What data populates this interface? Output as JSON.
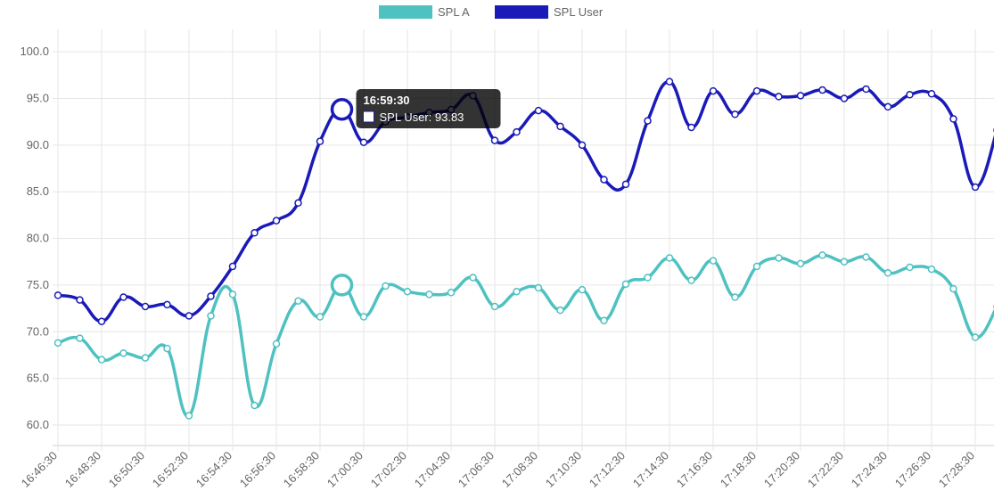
{
  "chart_data": {
    "type": "line",
    "categories": [
      "16:46:30",
      null,
      "16:48:30",
      null,
      "16:50:30",
      null,
      "16:52:30",
      null,
      "16:54:30",
      null,
      "16:56:30",
      null,
      "16:58:30",
      null,
      "17:00:30",
      null,
      "17:02:30",
      null,
      "17:04:30",
      null,
      "17:06:30",
      null,
      "17:08:30",
      null,
      "17:10:30",
      null,
      "17:12:30",
      null,
      "17:14:30",
      null,
      "17:16:30",
      null,
      "17:18:30",
      null,
      "17:20:30",
      null,
      "17:22:30",
      null,
      "17:24:30",
      null,
      "17:26:30",
      null,
      "17:28:30",
      null
    ],
    "series": [
      {
        "name": "SPL A",
        "color": "#4fc1c1",
        "values": [
          68.8,
          69.3,
          67.0,
          67.7,
          67.2,
          68.2,
          61.0,
          71.7,
          74.0,
          62.1,
          68.7,
          73.3,
          71.6,
          75.0,
          71.6,
          74.9,
          74.3,
          74.0,
          74.2,
          75.8,
          72.7,
          74.3,
          74.7,
          72.3,
          74.5,
          71.2,
          75.1,
          75.8,
          77.9,
          75.5,
          77.6,
          73.7,
          77.0,
          77.9,
          77.3,
          78.2,
          77.5,
          78.0,
          76.3,
          76.9,
          76.7,
          74.6,
          69.4,
          72.7
        ]
      },
      {
        "name": "SPL User",
        "color": "#1a1ab8",
        "values": [
          73.9,
          73.4,
          71.1,
          73.7,
          72.7,
          72.9,
          71.7,
          73.8,
          77.0,
          80.6,
          81.9,
          83.8,
          90.4,
          93.83,
          90.3,
          92.5,
          93.0,
          93.5,
          93.8,
          95.3,
          90.5,
          91.4,
          93.7,
          92.0,
          90.0,
          86.3,
          85.8,
          92.6,
          96.8,
          91.9,
          95.8,
          93.3,
          95.8,
          95.2,
          95.3,
          95.9,
          95.0,
          96.0,
          94.1,
          95.4,
          95.5,
          92.8,
          85.5,
          91.6
        ]
      }
    ],
    "ylim": [
      57.8,
      102.4
    ],
    "yticks": [
      {
        "value": 60,
        "label": "60.0"
      },
      {
        "value": 65,
        "label": "65.0"
      },
      {
        "value": 70,
        "label": "70.0"
      },
      {
        "value": 75,
        "label": "75.0"
      },
      {
        "value": 80,
        "label": "80.0"
      },
      {
        "value": 85,
        "label": "85.0"
      },
      {
        "value": 90,
        "label": "90.0"
      },
      {
        "value": 95,
        "label": "95.0"
      },
      {
        "value": 100,
        "label": "100.0"
      }
    ],
    "grid": true,
    "legend": "top",
    "highlight_index": 13,
    "tooltip": {
      "title": "16:59:30",
      "label": "SPL User: 93.83",
      "series": 1
    }
  }
}
